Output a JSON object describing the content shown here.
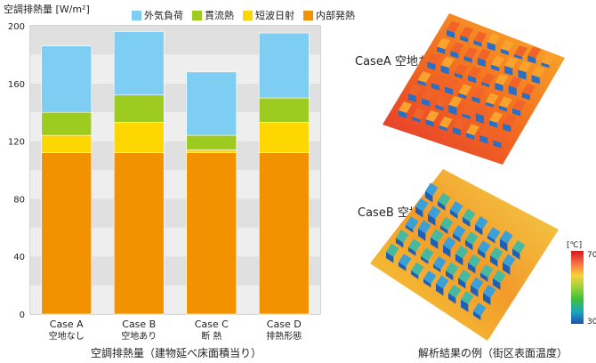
{
  "chart_data": {
    "type": "bar",
    "stacked": true,
    "title": "",
    "ylabel": "空調排熱量 [W/m²]",
    "xlabel": "空調排熱量（建物延べ床面積当り）",
    "ylim": [
      0,
      200
    ],
    "yticks": [
      "0",
      "40",
      "80",
      "120",
      "160",
      "200"
    ],
    "grid": "alternating horizontal bands",
    "legend_placement": "top",
    "categories": [
      {
        "line1": "Case A",
        "line2": "空地なし"
      },
      {
        "line1": "Case B",
        "line2": "空地あり"
      },
      {
        "line1": "Case C",
        "line2": "断 熱"
      },
      {
        "line1": "Case D",
        "line2": "排熱形態"
      }
    ],
    "series": [
      {
        "name": "内部発熱",
        "color": "#f39200",
        "values": [
          112,
          112,
          112,
          112
        ]
      },
      {
        "name": "短波日射",
        "color": "#ffd700",
        "values": [
          12,
          21,
          2,
          21
        ]
      },
      {
        "name": "貫流熱",
        "color": "#9dcb1f",
        "values": [
          16,
          19,
          10,
          17
        ]
      },
      {
        "name": "外気負荷",
        "color": "#7ecef4",
        "values": [
          46,
          44,
          44,
          45
        ]
      }
    ]
  },
  "legend_order": [
    3,
    2,
    1,
    0
  ],
  "right_panel": {
    "case_a_title": "CaseA 空地なし",
    "case_b_title": "CaseB 空地あり",
    "caption": "解析結果の例（街区表面温度）",
    "colorbar": {
      "unit": "[℃]",
      "max": "70",
      "min": "30"
    }
  }
}
